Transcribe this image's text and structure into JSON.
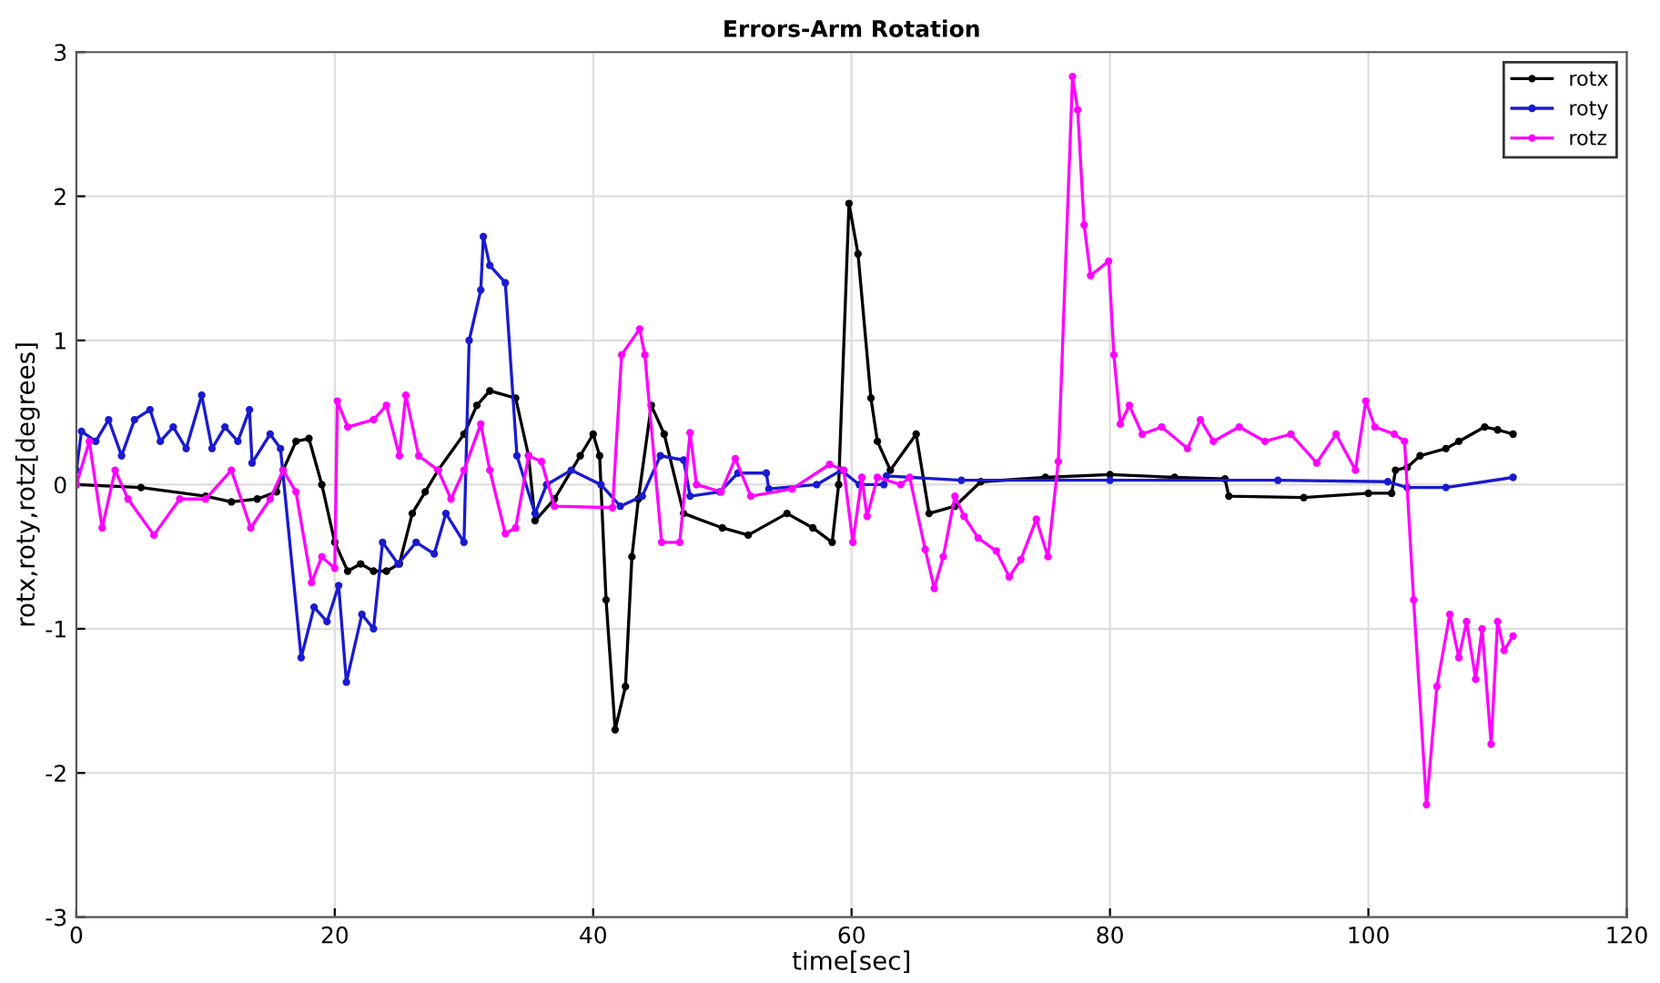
{
  "chart_data": {
    "type": "line",
    "title": "Errors-Arm Rotation",
    "xlabel": "time[sec]",
    "ylabel": "rotx,roty,rotz[degrees]",
    "xlim": [
      0,
      120
    ],
    "ylim": [
      -3,
      3
    ],
    "xticks": [
      0,
      20,
      40,
      60,
      80,
      100,
      120
    ],
    "yticks": [
      -3,
      -2,
      -1,
      0,
      1,
      2,
      3
    ],
    "grid": true,
    "legend": "top right",
    "marker": "circle",
    "line_style": "solid",
    "series": [
      {
        "name": "rotx",
        "color": "#000000",
        "x": [
          0,
          5,
          10,
          12,
          14,
          15.5,
          16,
          17,
          18,
          19,
          20,
          21,
          22,
          23,
          24,
          25,
          26,
          27,
          28,
          30,
          31,
          32,
          34,
          35,
          35.5,
          37,
          39,
          40,
          40.5,
          41,
          41.7,
          42.5,
          43,
          43.5,
          44.5,
          45.5,
          47,
          50,
          52,
          55,
          57,
          58.5,
          59,
          59.8,
          60.5,
          61.5,
          62,
          63,
          65,
          66,
          68,
          70,
          75,
          80,
          85,
          88.9,
          89.2,
          95,
          100,
          101.8,
          102.1,
          103,
          104,
          106,
          107,
          109,
          110,
          111.2
        ],
        "values": [
          0,
          -0.02,
          -0.08,
          -0.12,
          -0.1,
          -0.05,
          0.1,
          0.3,
          0.32,
          0.0,
          -0.4,
          -0.6,
          -0.55,
          -0.6,
          -0.6,
          -0.55,
          -0.2,
          -0.05,
          0.1,
          0.35,
          0.55,
          0.65,
          0.6,
          0.2,
          -0.25,
          -0.1,
          0.2,
          0.35,
          0.2,
          -0.8,
          -1.7,
          -1.4,
          -0.5,
          -0.1,
          0.55,
          0.35,
          -0.2,
          -0.3,
          -0.35,
          -0.2,
          -0.3,
          -0.4,
          0.0,
          1.95,
          1.6,
          0.6,
          0.3,
          0.1,
          0.35,
          -0.2,
          -0.15,
          0.02,
          0.05,
          0.07,
          0.05,
          0.04,
          -0.08,
          -0.09,
          -0.06,
          -0.06,
          0.1,
          0.12,
          0.2,
          0.25,
          0.3,
          0.4,
          0.38,
          0.35
        ]
      },
      {
        "name": "roty",
        "color": "#1a1ad0",
        "x": [
          0,
          0.4,
          1.5,
          2.5,
          3.5,
          4.5,
          5.7,
          6.5,
          7.5,
          8.5,
          9.7,
          10.5,
          11.5,
          12.5,
          13.4,
          13.6,
          15,
          15.8,
          17.4,
          18.4,
          19.4,
          20.3,
          20.9,
          22.1,
          23,
          23.7,
          24.9,
          26.3,
          27.7,
          28.6,
          30,
          30.4,
          31.3,
          31.5,
          32,
          33.2,
          34.1,
          35.5,
          36.4,
          38.3,
          40.6,
          42.1,
          43.8,
          45.2,
          47,
          47.5,
          49.8,
          51.2,
          53.4,
          53.6,
          57.3,
          59.2,
          60.6,
          62.5,
          62.7,
          68.5,
          80,
          93,
          101.5,
          103,
          106,
          111.2
        ],
        "values": [
          0.1,
          0.37,
          0.3,
          0.45,
          0.2,
          0.45,
          0.52,
          0.3,
          0.4,
          0.25,
          0.62,
          0.25,
          0.4,
          0.3,
          0.52,
          0.15,
          0.35,
          0.25,
          -1.2,
          -0.85,
          -0.95,
          -0.7,
          -1.37,
          -0.9,
          -1.0,
          -0.4,
          -0.55,
          -0.4,
          -0.48,
          -0.2,
          -0.4,
          1.0,
          1.35,
          1.72,
          1.52,
          1.4,
          0.2,
          -0.2,
          0.0,
          0.1,
          0.0,
          -0.15,
          -0.08,
          0.2,
          0.17,
          -0.08,
          -0.05,
          0.08,
          0.08,
          -0.03,
          0.0,
          0.1,
          0.0,
          0.0,
          0.06,
          0.03,
          0.03,
          0.03,
          0.02,
          -0.02,
          -0.02,
          0.05
        ]
      },
      {
        "name": "rotz",
        "color": "#ff00ff",
        "x": [
          0,
          1,
          2,
          3,
          4,
          6,
          8,
          10,
          12,
          13.5,
          15,
          16,
          17,
          18.2,
          19,
          20,
          20.2,
          21,
          23,
          24,
          25,
          25.5,
          26.5,
          28,
          29,
          30,
          31.3,
          32,
          33.2,
          34,
          35,
          36,
          37,
          41.5,
          42.2,
          43.6,
          44,
          45.3,
          46.7,
          47.5,
          48,
          49.9,
          51,
          52.2,
          55.4,
          58.3,
          59.4,
          60.1,
          60.8,
          61.2,
          62,
          63.8,
          64.5,
          65.7,
          66.4,
          67.1,
          68,
          68.7,
          69.8,
          71.2,
          72.2,
          73.1,
          74.3,
          75.2,
          76,
          77.1,
          77.5,
          78,
          78.5,
          79.9,
          80.3,
          80.8,
          81.5,
          82.5,
          84,
          86,
          87,
          88,
          90,
          92,
          94,
          96,
          97.5,
          99,
          99.8,
          100.5,
          102,
          102.8,
          103.5,
          104.5,
          105.3,
          106.3,
          107,
          107.6,
          108.3,
          108.8,
          109.5,
          110,
          110.5,
          111.2
        ],
        "values": [
          0,
          0.3,
          -0.3,
          0.1,
          -0.1,
          -0.35,
          -0.1,
          -0.1,
          0.1,
          -0.3,
          -0.1,
          0.1,
          -0.05,
          -0.68,
          -0.5,
          -0.58,
          0.58,
          0.4,
          0.45,
          0.55,
          0.2,
          0.62,
          0.2,
          0.1,
          -0.1,
          0.1,
          0.42,
          0.1,
          -0.34,
          -0.3,
          0.2,
          0.16,
          -0.15,
          -0.16,
          0.9,
          1.08,
          0.9,
          -0.4,
          -0.4,
          0.36,
          0.0,
          -0.05,
          0.18,
          -0.08,
          -0.03,
          0.14,
          0.1,
          -0.4,
          0.05,
          -0.22,
          0.05,
          0,
          0.05,
          -0.45,
          -0.72,
          -0.5,
          -0.08,
          -0.22,
          -0.37,
          -0.46,
          -0.64,
          -0.52,
          -0.24,
          -0.5,
          0.16,
          2.83,
          2.6,
          1.8,
          1.45,
          1.55,
          0.9,
          0.42,
          0.55,
          0.35,
          0.4,
          0.25,
          0.45,
          0.3,
          0.4,
          0.3,
          0.35,
          0.15,
          0.35,
          0.1,
          0.58,
          0.4,
          0.35,
          0.3,
          -0.8,
          -2.22,
          -1.4,
          -0.9,
          -1.2,
          -0.95,
          -1.35,
          -1.0,
          -1.8,
          -0.95,
          -1.15,
          -1.05
        ]
      }
    ]
  }
}
